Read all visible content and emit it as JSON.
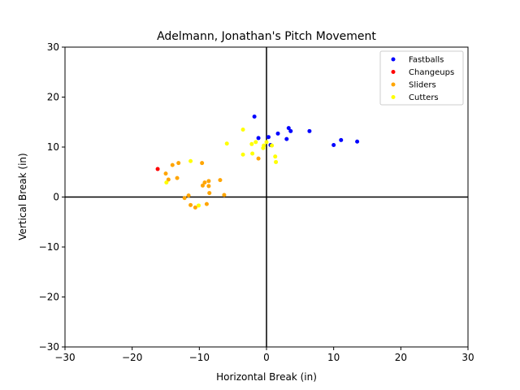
{
  "chart_data": {
    "type": "scatter",
    "title": "Adelmann, Jonathan's Pitch Movement",
    "xlabel": "Horizontal Break (in)",
    "ylabel": "Vertical Break (in)",
    "xlim": [
      -30,
      30
    ],
    "ylim": [
      -30,
      30
    ],
    "xticks": [
      -30,
      -20,
      -10,
      0,
      10,
      20,
      30
    ],
    "yticks": [
      -30,
      -20,
      -10,
      0,
      10,
      20,
      30
    ],
    "xtick_labels": [
      "−30",
      "−20",
      "−10",
      "0",
      "10",
      "20",
      "30"
    ],
    "ytick_labels": [
      "−30",
      "−20",
      "−10",
      "0",
      "10",
      "20",
      "30"
    ],
    "grid": false,
    "zero_lines": true,
    "legend_position": "top-right",
    "series": [
      {
        "name": "Fastballs",
        "color": "#0000ff",
        "points": [
          [
            -1.8,
            16.1
          ],
          [
            -1.2,
            11.8
          ],
          [
            0.3,
            12.0
          ],
          [
            0.6,
            10.4
          ],
          [
            1.7,
            12.7
          ],
          [
            3.0,
            11.6
          ],
          [
            3.3,
            13.8
          ],
          [
            3.6,
            13.2
          ],
          [
            6.4,
            13.2
          ],
          [
            10.0,
            10.4
          ],
          [
            11.1,
            11.4
          ],
          [
            13.5,
            11.1
          ]
        ]
      },
      {
        "name": "Changeups",
        "color": "#ff0000",
        "points": [
          [
            -16.2,
            5.6
          ]
        ]
      },
      {
        "name": "Sliders",
        "color": "#ffa500",
        "points": [
          [
            -15.0,
            4.7
          ],
          [
            -14.6,
            3.5
          ],
          [
            -14.0,
            6.4
          ],
          [
            -13.3,
            3.8
          ],
          [
            -13.1,
            6.8
          ],
          [
            -12.2,
            -0.2
          ],
          [
            -11.6,
            0.3
          ],
          [
            -11.3,
            -1.6
          ],
          [
            -10.6,
            -2.1
          ],
          [
            -9.6,
            6.8
          ],
          [
            -9.5,
            2.3
          ],
          [
            -9.2,
            2.9
          ],
          [
            -8.9,
            -1.4
          ],
          [
            -8.6,
            3.2
          ],
          [
            -8.6,
            2.2
          ],
          [
            -8.5,
            0.8
          ],
          [
            -6.9,
            3.4
          ],
          [
            -6.3,
            0.4
          ],
          [
            -1.2,
            7.7
          ]
        ]
      },
      {
        "name": "Cutters",
        "color": "#ffff00",
        "points": [
          [
            -14.9,
            2.9
          ],
          [
            -11.3,
            7.2
          ],
          [
            -10.1,
            -1.7
          ],
          [
            -5.9,
            10.7
          ],
          [
            -3.5,
            13.5
          ],
          [
            -3.5,
            8.5
          ],
          [
            -2.2,
            10.6
          ],
          [
            -2.1,
            8.7
          ],
          [
            -1.6,
            11.0
          ],
          [
            -0.5,
            9.8
          ],
          [
            -0.4,
            10.3
          ],
          [
            0.0,
            11.0
          ],
          [
            0.8,
            10.3
          ],
          [
            1.3,
            8.1
          ],
          [
            1.4,
            7.0
          ]
        ]
      }
    ]
  }
}
